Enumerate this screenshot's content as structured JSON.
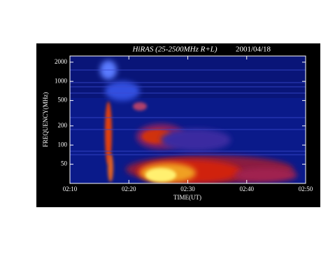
{
  "chart_data": {
    "type": "spectrogram",
    "title": "HiRAS (25-2500MHz R+L)",
    "date": "2001/04/18",
    "x_label": "TIME(UT)",
    "y_label": "FREQUENCY(MHz)",
    "xlim": [
      "02:10",
      "02:50"
    ],
    "xticks": [
      "02:10",
      "02:20",
      "02:30",
      "02:40",
      "02:50"
    ],
    "ylim": [
      25,
      2500
    ],
    "yticks": [
      50,
      100,
      200,
      500,
      1000,
      2000
    ],
    "log_y": true
  }
}
